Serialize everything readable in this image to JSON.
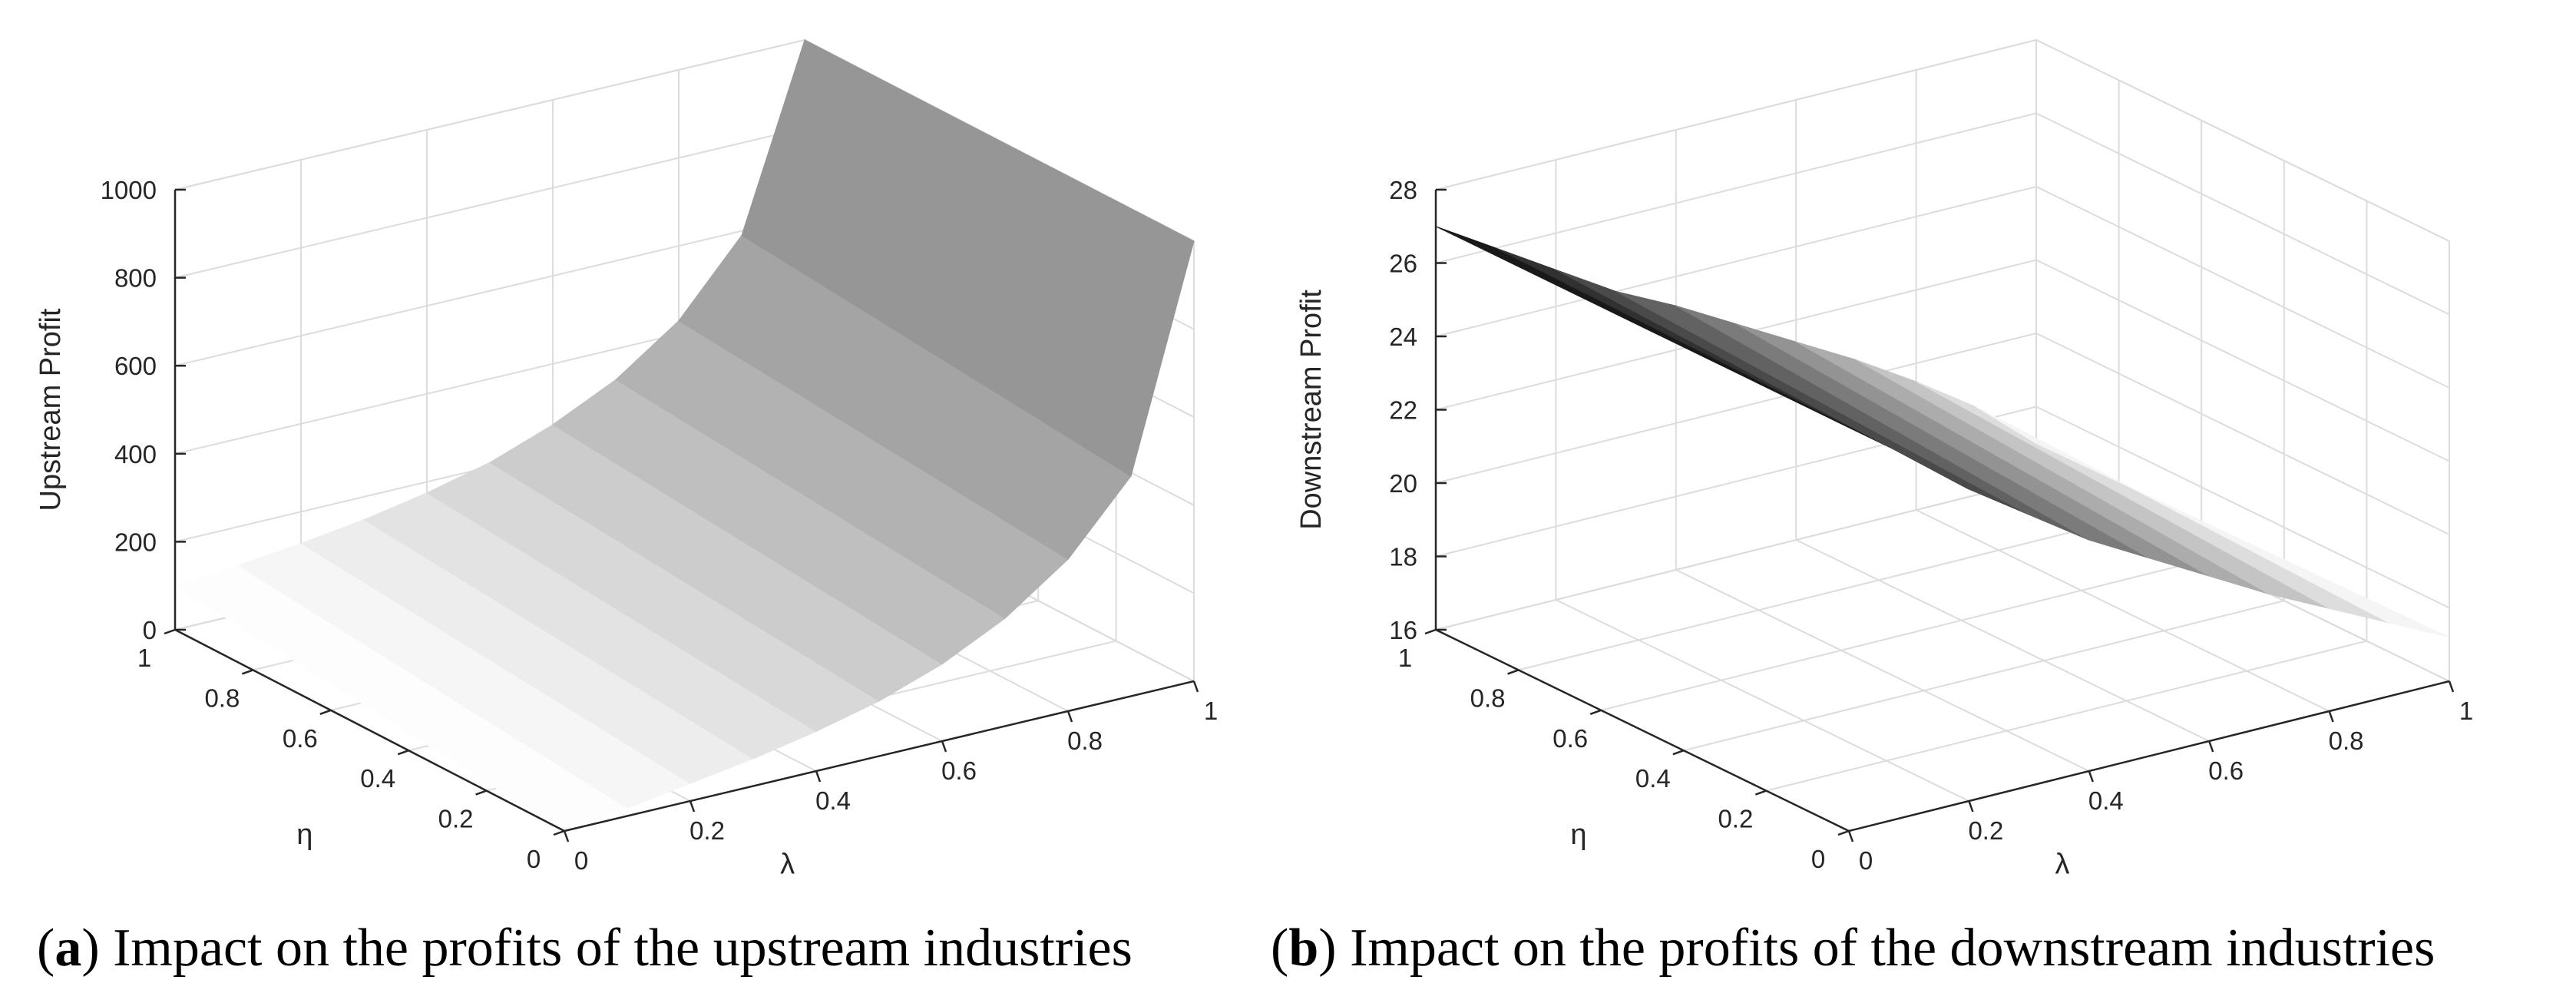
{
  "figure": {
    "captions": [
      {
        "letter": "a",
        "text": "Impact on the profits of the upstream industries"
      },
      {
        "letter": "b",
        "text": "Impact on the profits of the downstream industries"
      }
    ]
  },
  "chart_data": [
    {
      "type": "surface3d",
      "panel": "a",
      "xlabel": "λ",
      "ylabel": "η",
      "zlabel": "Upstream Profit",
      "xlim": [
        0,
        1
      ],
      "ylim": [
        0,
        1
      ],
      "zlim": [
        0,
        1000
      ],
      "xticks": [
        "0",
        "0.2",
        "0.4",
        "0.6",
        "0.8",
        "1"
      ],
      "yticks": [
        "0",
        "0.2",
        "0.4",
        "0.6",
        "0.8",
        "1"
      ],
      "zticks": [
        "0",
        "200",
        "400",
        "600",
        "800",
        "1000"
      ],
      "grid": true,
      "shading": "grayscale",
      "lambda": [
        0.0,
        0.1,
        0.2,
        0.3,
        0.4,
        0.5,
        0.6,
        0.7,
        0.8,
        0.9,
        1.0
      ],
      "eta": [
        0,
        1
      ],
      "profit_rows": [
        [
          0,
          18,
          40,
          62,
          90,
          125,
          175,
          245,
          345,
          500,
          1000
        ],
        [
          100,
          112,
          128,
          148,
          175,
          210,
          262,
          330,
          430,
          590,
          1000
        ]
      ]
    },
    {
      "type": "surface3d",
      "panel": "b",
      "xlabel": "λ",
      "ylabel": "η",
      "zlabel": "Downstream Profit",
      "xlim": [
        0,
        1
      ],
      "ylim": [
        0,
        1
      ],
      "zlim": [
        16,
        28
      ],
      "xticks": [
        "0",
        "0.2",
        "0.4",
        "0.6",
        "0.8",
        "1"
      ],
      "yticks": [
        "0",
        "0.2",
        "0.4",
        "0.6",
        "0.8",
        "1"
      ],
      "zticks": [
        "16",
        "18",
        "20",
        "22",
        "24",
        "26",
        "28"
      ],
      "grid": true,
      "shading": "grayscale",
      "lambda": [
        0.0,
        0.1,
        0.2,
        0.3,
        0.4,
        0.5,
        0.6,
        0.7,
        0.8,
        0.9,
        1.0
      ],
      "eta": [
        0,
        1
      ],
      "profit_rows": [
        [
          27.0,
          25.8,
          24.5,
          23.4,
          22.3,
          21.4,
          20.5,
          19.6,
          18.8,
          18.0,
          17.2
        ],
        [
          27.0,
          26.0,
          25.0,
          24.0,
          23.2,
          22.3,
          21.4,
          20.5,
          19.5,
          18.4,
          17.0
        ]
      ]
    }
  ]
}
